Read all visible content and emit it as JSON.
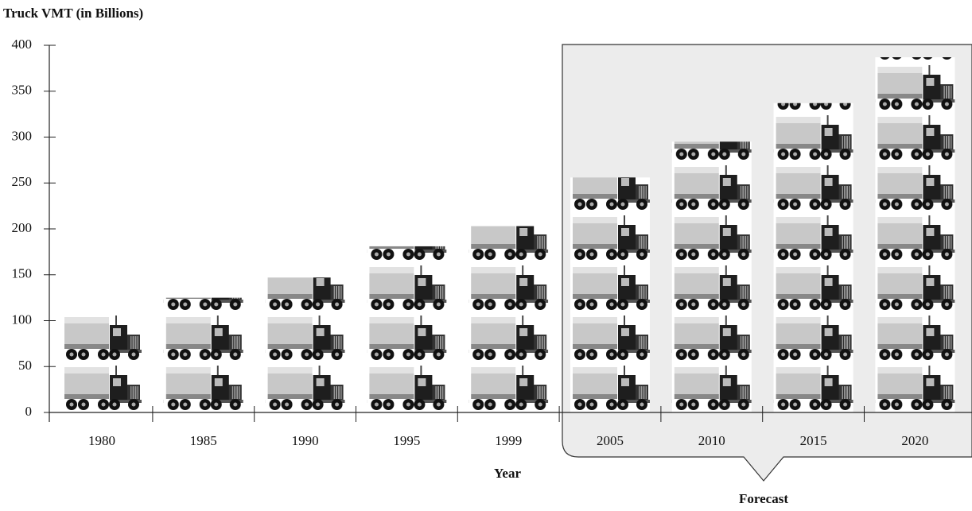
{
  "chart_data": {
    "type": "pictograph",
    "y_label": "Truck VMT (in Billions)",
    "x_label": "Year",
    "annotation": "Forecast",
    "categories": [
      "1980",
      "1985",
      "1990",
      "1995",
      "1999",
      "2005",
      "2010",
      "2015",
      "2020"
    ],
    "values": [
      107,
      125,
      147,
      181,
      203,
      256,
      295,
      337,
      387
    ],
    "ylim": [
      0,
      400
    ],
    "yticks": [
      0,
      50,
      100,
      150,
      200,
      250,
      300,
      350,
      400
    ]
  }
}
